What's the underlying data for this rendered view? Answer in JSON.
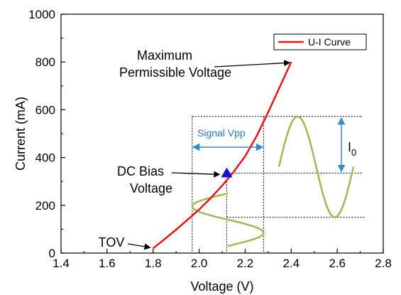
{
  "chart_data": {
    "type": "line",
    "title": "",
    "xlabel": "Voltage (V)",
    "ylabel": "Current (mA)",
    "xlim": [
      1.4,
      2.8
    ],
    "ylim": [
      0,
      1000
    ],
    "xticks": [
      "1.4",
      "1.6",
      "1.8",
      "2.0",
      "2.2",
      "2.4",
      "2.6",
      "2.8"
    ],
    "yticks": [
      "0",
      "200",
      "400",
      "600",
      "800",
      "1000"
    ],
    "legend": {
      "position": "top-right",
      "entries": [
        "U-I Curve"
      ]
    },
    "series": [
      {
        "name": "U-I Curve",
        "color": "#e8151b",
        "x": [
          1.8,
          1.85,
          1.9,
          1.95,
          2.0,
          2.05,
          2.1,
          2.15,
          2.2,
          2.25,
          2.3,
          2.35,
          2.4
        ],
        "y": [
          20,
          58,
          98,
          140,
          182,
          230,
          282,
          340,
          405,
          490,
          590,
          695,
          800
        ]
      }
    ],
    "dc_bias_point": {
      "x": 2.12,
      "y": 335,
      "color": "#1010d8"
    },
    "signal_vpp_range": [
      1.97,
      2.28
    ],
    "current_level_range": [
      150,
      572
    ],
    "annotations": {
      "max_voltage_line1": "Maximum",
      "max_voltage_line2": "Permissible Voltage",
      "dc_bias_line1": "DC Bias",
      "dc_bias_line2": "Voltage",
      "tov": "TOV",
      "signal_vpp": "Signal Vpp",
      "i0_main": "I",
      "i0_sub": "0"
    },
    "colors": {
      "sine_wave": "#9bbb59",
      "vpp_arrow": "#2e8bd0",
      "signal_label": "#2e75b6"
    }
  }
}
